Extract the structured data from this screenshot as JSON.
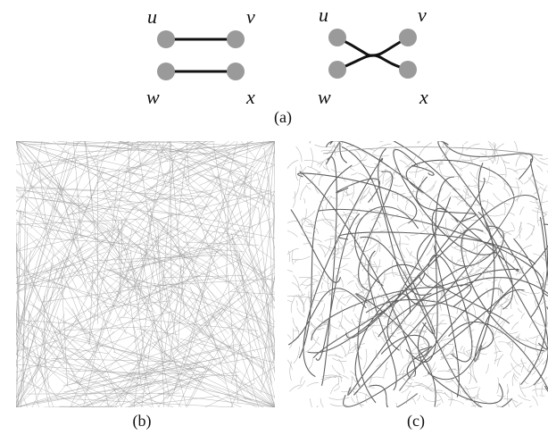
{
  "panel_a": {
    "left_graph": {
      "labels": {
        "u": "u",
        "v": "v",
        "w": "w",
        "x": "x"
      }
    },
    "right_graph": {
      "labels": {
        "u": "u",
        "v": "v",
        "w": "w",
        "x": "x"
      }
    },
    "caption": "(a)"
  },
  "panel_b": {
    "caption": "(b)"
  },
  "panel_c": {
    "caption": "(c)"
  },
  "colors": {
    "node": "#9a9a9a",
    "edge": "#111111",
    "line_light": "#9b9b9b",
    "line_dark": "#3a3a3a"
  }
}
